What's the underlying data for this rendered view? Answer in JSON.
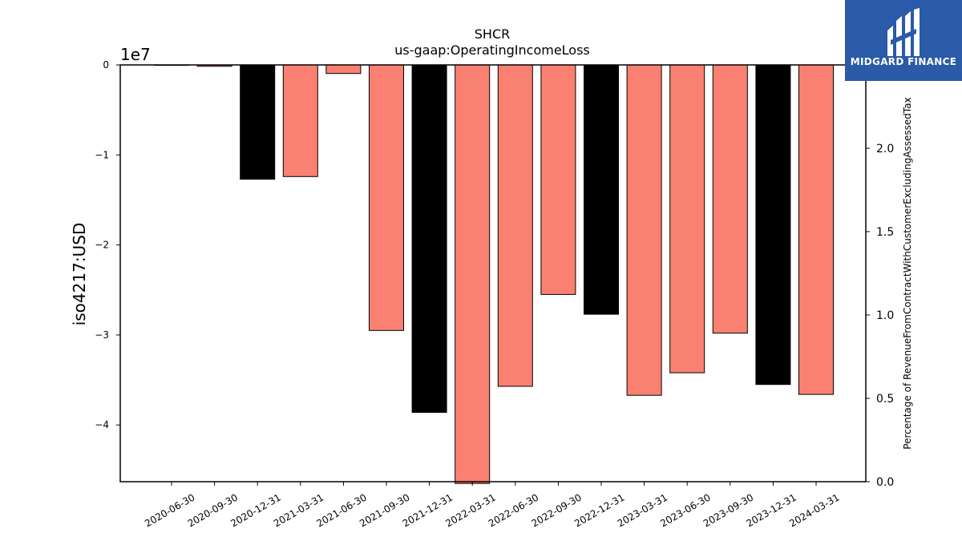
{
  "chart_data": {
    "type": "bar",
    "title": "SHCR",
    "subtitle": "us-gaap:OperatingIncomeLoss",
    "ylabel": "iso4217:USD",
    "y_offset_label": "1e7",
    "y2label": "Percentage of RevenueFromContractWithCustomerExcludingAssessedTax",
    "categories": [
      "2020-06-30",
      "2020-09-30",
      "2020-12-31",
      "2021-03-31",
      "2021-06-30",
      "2021-09-30",
      "2021-12-31",
      "2022-03-31",
      "2022-06-30",
      "2022-09-30",
      "2022-12-31",
      "2023-03-31",
      "2023-06-30",
      "2023-09-30",
      "2023-12-31",
      "2024-03-31"
    ],
    "values": [
      0,
      -150000,
      -12700000,
      -12400000,
      -950000,
      -29500000,
      -38600000,
      -46500000,
      -35700000,
      -25500000,
      -27700000,
      -36700000,
      -34200000,
      -29800000,
      -35500000,
      -36600000
    ],
    "bar_colors": [
      "#fa8072",
      "#fa8072",
      "#000000",
      "#fa8072",
      "#fa8072",
      "#fa8072",
      "#000000",
      "#fa8072",
      "#fa8072",
      "#fa8072",
      "#000000",
      "#fa8072",
      "#fa8072",
      "#fa8072",
      "#000000",
      "#fa8072"
    ],
    "ylim": [
      -46300000,
      0
    ],
    "yticks": [
      0,
      -10000000,
      -20000000,
      -30000000,
      -40000000
    ],
    "ytick_labels": [
      "0",
      "−1",
      "−2",
      "−3",
      "−4"
    ],
    "y2lim": [
      0,
      2.5
    ],
    "y2ticks": [
      0,
      0.5,
      1.0,
      1.5,
      2.0
    ],
    "y2tick_labels": [
      "0.0",
      "0.5",
      "1.0",
      "1.5",
      "2.0"
    ],
    "grid": false,
    "legend": "none"
  },
  "logo": {
    "text": "MIDGARD FINANCE",
    "color": "#2a5aa8"
  }
}
